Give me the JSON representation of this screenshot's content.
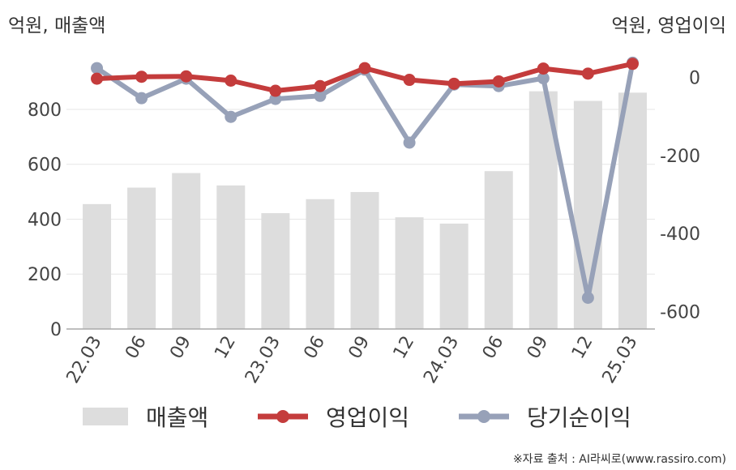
{
  "chart_data": {
    "type": "bar+line",
    "left_axis_label": "억원, 매출액",
    "right_axis_label": "억원, 영업이익",
    "categories": [
      "22.03",
      "06",
      "09",
      "12",
      "23.03",
      "06",
      "09",
      "12",
      "24.03",
      "06",
      "09",
      "12",
      "25.03"
    ],
    "left_axis": {
      "ticks": [
        0,
        200,
        400,
        600,
        800
      ],
      "ylim": [
        0,
        980
      ]
    },
    "right_axis": {
      "ticks": [
        0,
        -200,
        -400,
        -600
      ],
      "ylim": [
        -645,
        45
      ]
    },
    "grid": true,
    "series": [
      {
        "name": "매출액",
        "type": "bar",
        "axis": "left",
        "color": "#dddddd",
        "values": [
          455,
          515,
          568,
          523,
          422,
          473,
          499,
          407,
          384,
          575,
          866,
          831,
          861
        ]
      },
      {
        "name": "영업이익",
        "type": "line",
        "axis": "right",
        "color": "#c43c3c",
        "values": [
          -3,
          2,
          3,
          -8,
          -34,
          -22,
          24,
          -6,
          -16,
          -10,
          23,
          10,
          35
        ]
      },
      {
        "name": "당기순이익",
        "type": "line",
        "axis": "right",
        "color": "#97a1b8",
        "values": [
          24,
          -53,
          -3,
          -101,
          -55,
          -47,
          20,
          -167,
          -18,
          -22,
          -2,
          -565,
          38
        ]
      }
    ],
    "legend_position": "bottom"
  },
  "source": "※자료 출처 : AI라씨로(www.rassiro.com)"
}
